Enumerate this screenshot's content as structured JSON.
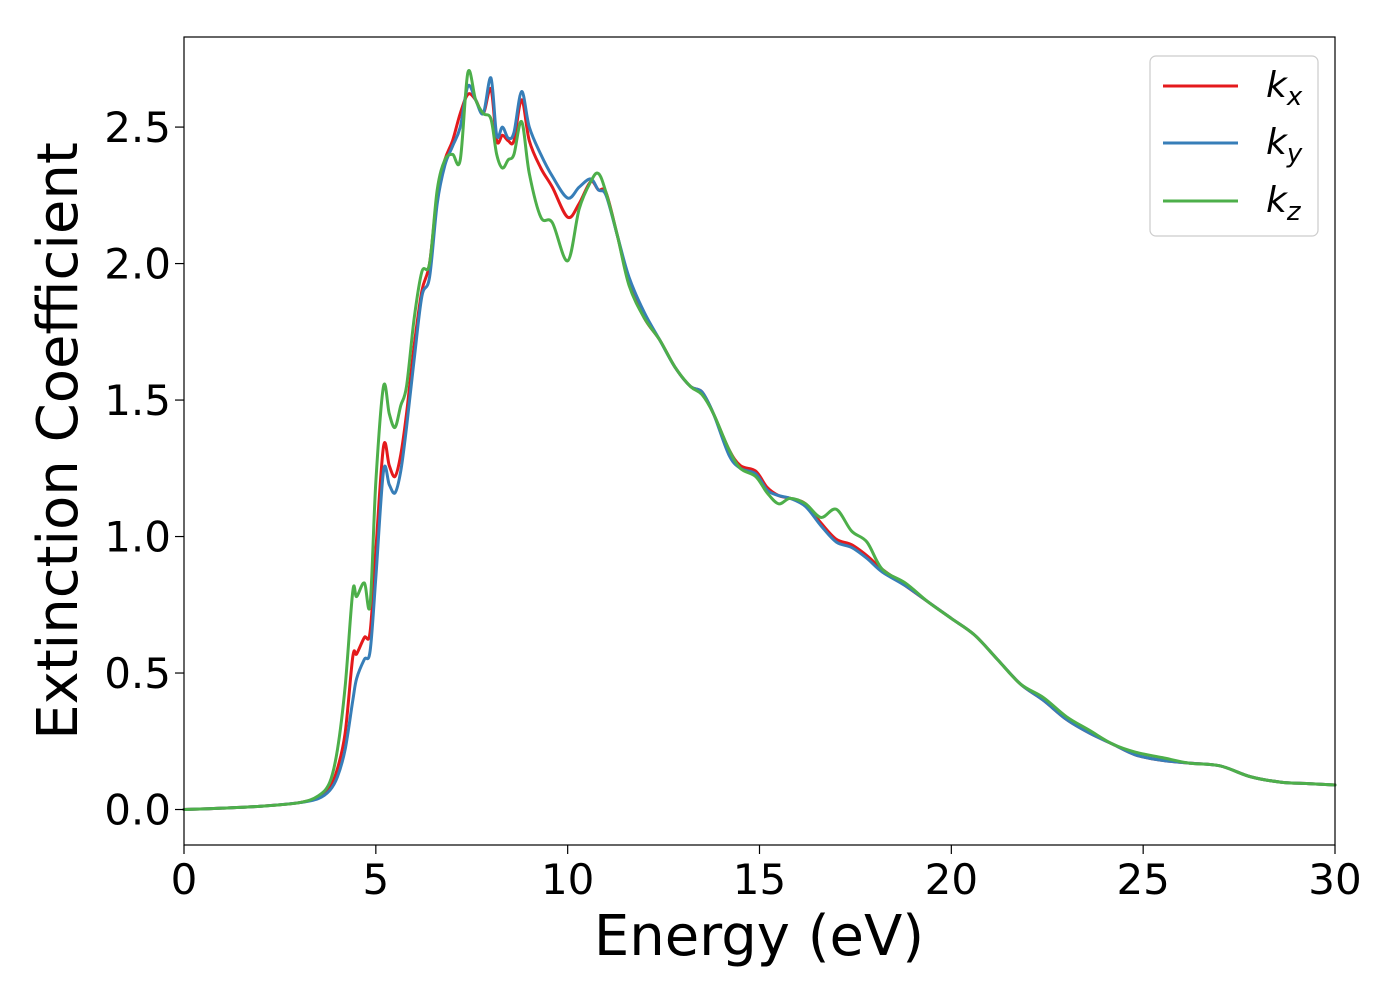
{
  "chart_data": {
    "type": "line",
    "title": "",
    "xlabel": "Energy (eV)",
    "ylabel": "Extinction Coefficient",
    "xlim": [
      0,
      30
    ],
    "ylim": [
      -0.13,
      2.83
    ],
    "xticks": [
      "0",
      "5",
      "10",
      "15",
      "20",
      "25",
      "30"
    ],
    "yticks": [
      "0.0",
      "0.5",
      "1.0",
      "1.5",
      "2.0",
      "2.5"
    ],
    "grid": false,
    "legend_position": "top-right",
    "legend": [
      {
        "base": "k",
        "sub": "x",
        "color": "#e41a1c"
      },
      {
        "base": "k",
        "sub": "y",
        "color": "#377eb8"
      },
      {
        "base": "k",
        "sub": "z",
        "color": "#4daf4a"
      }
    ],
    "series": [
      {
        "name": "kx",
        "color": "#e41a1c",
        "x": [
          0,
          1,
          2,
          3,
          3.5,
          3.8,
          4.0,
          4.2,
          4.4,
          4.5,
          4.7,
          4.85,
          5.0,
          5.2,
          5.35,
          5.5,
          5.65,
          5.8,
          6.0,
          6.2,
          6.4,
          6.6,
          6.8,
          7.0,
          7.2,
          7.4,
          7.6,
          7.8,
          8.0,
          8.15,
          8.3,
          8.45,
          8.6,
          8.8,
          9.0,
          9.3,
          9.6,
          10.0,
          10.3,
          10.6,
          10.8,
          11.0,
          11.3,
          11.6,
          12.0,
          12.4,
          12.8,
          13.2,
          13.5,
          13.8,
          14.2,
          14.5,
          14.9,
          15.2,
          15.5,
          15.8,
          16.2,
          16.6,
          17.0,
          17.4,
          17.8,
          18.2,
          18.8,
          19.4,
          20.0,
          20.6,
          21.2,
          21.8,
          22.4,
          23.0,
          23.6,
          24.2,
          24.8,
          25.5,
          26.2,
          27.0,
          27.8,
          28.6,
          29.3,
          30.0
        ],
        "y": [
          0,
          0.005,
          0.012,
          0.025,
          0.045,
          0.08,
          0.15,
          0.28,
          0.56,
          0.57,
          0.63,
          0.65,
          0.95,
          1.33,
          1.26,
          1.22,
          1.3,
          1.45,
          1.7,
          1.9,
          2.0,
          2.25,
          2.38,
          2.45,
          2.55,
          2.62,
          2.6,
          2.55,
          2.64,
          2.45,
          2.47,
          2.45,
          2.45,
          2.6,
          2.45,
          2.35,
          2.28,
          2.17,
          2.22,
          2.3,
          2.27,
          2.26,
          2.1,
          1.93,
          1.8,
          1.72,
          1.62,
          1.55,
          1.53,
          1.45,
          1.32,
          1.26,
          1.24,
          1.18,
          1.15,
          1.14,
          1.12,
          1.05,
          0.99,
          0.97,
          0.93,
          0.88,
          0.82,
          0.76,
          0.7,
          0.64,
          0.55,
          0.46,
          0.4,
          0.33,
          0.28,
          0.24,
          0.2,
          0.18,
          0.17,
          0.16,
          0.12,
          0.1,
          0.095,
          0.09
        ]
      },
      {
        "name": "ky",
        "color": "#377eb8",
        "x": [
          0,
          1,
          2,
          3,
          3.5,
          3.8,
          4.0,
          4.2,
          4.4,
          4.5,
          4.7,
          4.85,
          5.0,
          5.2,
          5.35,
          5.5,
          5.65,
          5.8,
          6.0,
          6.2,
          6.4,
          6.6,
          6.8,
          7.0,
          7.2,
          7.4,
          7.6,
          7.8,
          8.0,
          8.15,
          8.3,
          8.45,
          8.6,
          8.8,
          9.0,
          9.3,
          9.6,
          10.0,
          10.3,
          10.6,
          10.8,
          11.0,
          11.3,
          11.6,
          12.0,
          12.4,
          12.8,
          13.2,
          13.5,
          13.8,
          14.2,
          14.5,
          14.9,
          15.2,
          15.5,
          15.8,
          16.2,
          16.6,
          17.0,
          17.4,
          17.8,
          18.2,
          18.8,
          19.4,
          20.0,
          20.6,
          21.2,
          21.8,
          22.4,
          23.0,
          23.6,
          24.2,
          24.8,
          25.5,
          26.2,
          27.0,
          27.8,
          28.6,
          29.3,
          30.0
        ],
        "y": [
          0,
          0.005,
          0.012,
          0.025,
          0.04,
          0.07,
          0.12,
          0.22,
          0.4,
          0.48,
          0.55,
          0.58,
          0.85,
          1.24,
          1.19,
          1.16,
          1.24,
          1.4,
          1.65,
          1.88,
          1.95,
          2.22,
          2.36,
          2.43,
          2.5,
          2.65,
          2.6,
          2.55,
          2.68,
          2.47,
          2.5,
          2.46,
          2.48,
          2.63,
          2.5,
          2.4,
          2.32,
          2.24,
          2.28,
          2.31,
          2.27,
          2.25,
          2.1,
          1.95,
          1.82,
          1.72,
          1.62,
          1.55,
          1.53,
          1.45,
          1.3,
          1.25,
          1.23,
          1.17,
          1.15,
          1.14,
          1.11,
          1.04,
          0.98,
          0.96,
          0.92,
          0.87,
          0.82,
          0.76,
          0.7,
          0.64,
          0.55,
          0.46,
          0.4,
          0.33,
          0.28,
          0.24,
          0.2,
          0.18,
          0.17,
          0.16,
          0.12,
          0.1,
          0.095,
          0.09
        ]
      },
      {
        "name": "kz",
        "color": "#4daf4a",
        "x": [
          0,
          1,
          2,
          3,
          3.5,
          3.8,
          4.0,
          4.2,
          4.4,
          4.5,
          4.7,
          4.85,
          5.0,
          5.2,
          5.35,
          5.5,
          5.65,
          5.8,
          6.0,
          6.2,
          6.4,
          6.6,
          6.8,
          7.0,
          7.2,
          7.4,
          7.6,
          7.8,
          8.0,
          8.15,
          8.3,
          8.45,
          8.6,
          8.8,
          9.0,
          9.3,
          9.6,
          10.0,
          10.3,
          10.6,
          10.8,
          11.0,
          11.3,
          11.6,
          12.0,
          12.4,
          12.8,
          13.2,
          13.5,
          13.8,
          14.2,
          14.5,
          14.9,
          15.2,
          15.5,
          15.8,
          16.2,
          16.6,
          17.0,
          17.4,
          17.8,
          18.2,
          18.8,
          19.4,
          20.0,
          20.6,
          21.2,
          21.8,
          22.4,
          23.0,
          23.6,
          24.2,
          24.8,
          25.5,
          26.2,
          27.0,
          27.8,
          28.6,
          29.3,
          30.0
        ],
        "y": [
          0,
          0.005,
          0.012,
          0.025,
          0.05,
          0.1,
          0.22,
          0.45,
          0.8,
          0.78,
          0.83,
          0.75,
          1.2,
          1.55,
          1.45,
          1.4,
          1.48,
          1.55,
          1.8,
          1.97,
          2.0,
          2.27,
          2.38,
          2.4,
          2.38,
          2.7,
          2.6,
          2.55,
          2.53,
          2.4,
          2.35,
          2.38,
          2.4,
          2.52,
          2.33,
          2.17,
          2.15,
          2.01,
          2.2,
          2.3,
          2.33,
          2.26,
          2.1,
          1.92,
          1.8,
          1.72,
          1.62,
          1.55,
          1.52,
          1.45,
          1.32,
          1.25,
          1.22,
          1.16,
          1.12,
          1.14,
          1.12,
          1.07,
          1.1,
          1.02,
          0.98,
          0.88,
          0.83,
          0.76,
          0.7,
          0.64,
          0.55,
          0.46,
          0.41,
          0.34,
          0.29,
          0.24,
          0.21,
          0.19,
          0.17,
          0.16,
          0.12,
          0.1,
          0.095,
          0.09
        ]
      }
    ]
  }
}
